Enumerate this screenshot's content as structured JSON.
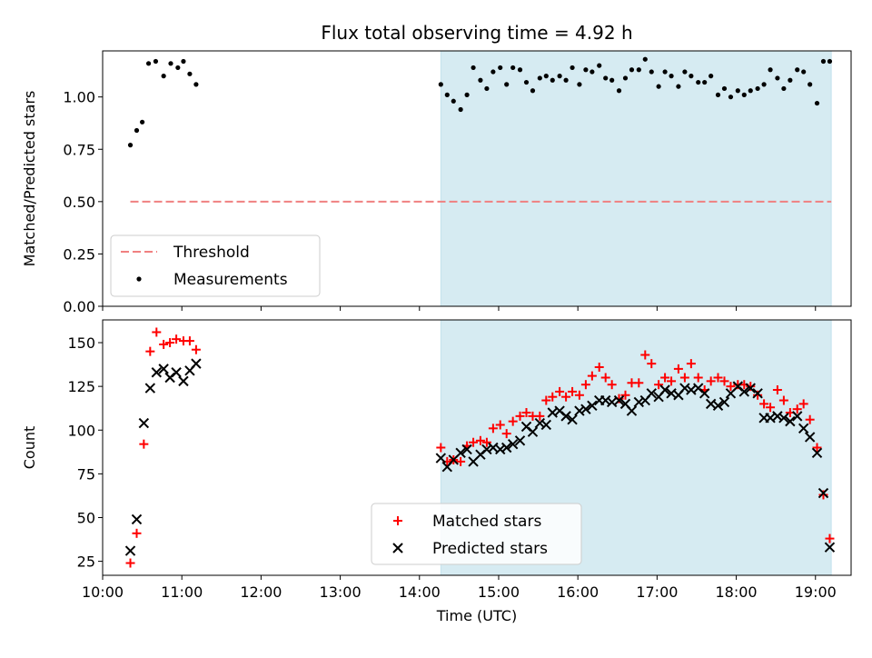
{
  "title": "Flux total observing time = 4.92 h",
  "chart_data": [
    {
      "type": "scatter",
      "ylabel": "Matched/Predicted stars",
      "xlim": [
        10.0,
        19.45
      ],
      "ylim": [
        0.0,
        1.22
      ],
      "yticks": [
        {
          "value": 0.0,
          "label": "0.00"
        },
        {
          "value": 0.25,
          "label": "0.25"
        },
        {
          "value": 0.5,
          "label": "0.50"
        },
        {
          "value": 0.75,
          "label": "0.75"
        },
        {
          "value": 1.0,
          "label": "1.00"
        }
      ],
      "shaded_span": {
        "x": [
          14.27,
          19.2
        ],
        "color": "#add8e6"
      },
      "threshold": {
        "name": "Threshold",
        "y": 0.5,
        "x": [
          10.35,
          19.2
        ],
        "color": "#f08080",
        "style": "dashed"
      },
      "legend": {
        "placement": "lower-left",
        "entries": [
          "Threshold",
          "Measurements"
        ]
      },
      "series": [
        {
          "name": "Measurements",
          "marker": "dot",
          "color": "#000000",
          "x": [
            10.35,
            10.43,
            10.5,
            10.58,
            10.67,
            10.77,
            10.86,
            10.95,
            11.02,
            11.1,
            11.18,
            14.27,
            14.35,
            14.43,
            14.52,
            14.6,
            14.68,
            14.77,
            14.85,
            14.93,
            15.02,
            15.1,
            15.18,
            15.27,
            15.35,
            15.43,
            15.52,
            15.6,
            15.68,
            15.77,
            15.85,
            15.93,
            16.02,
            16.1,
            16.18,
            16.27,
            16.35,
            16.43,
            16.52,
            16.6,
            16.68,
            16.77,
            16.85,
            16.93,
            17.02,
            17.1,
            17.18,
            17.27,
            17.35,
            17.43,
            17.52,
            17.6,
            17.68,
            17.77,
            17.85,
            17.93,
            18.02,
            18.1,
            18.18,
            18.27,
            18.35,
            18.43,
            18.52,
            18.6,
            18.68,
            18.77,
            18.85,
            18.93,
            19.02,
            19.1,
            19.18
          ],
          "y": [
            0.77,
            0.84,
            0.88,
            1.16,
            1.17,
            1.1,
            1.16,
            1.14,
            1.17,
            1.11,
            1.06,
            1.06,
            1.01,
            0.98,
            0.94,
            1.01,
            1.14,
            1.08,
            1.04,
            1.12,
            1.14,
            1.06,
            1.14,
            1.13,
            1.07,
            1.03,
            1.09,
            1.1,
            1.08,
            1.1,
            1.08,
            1.14,
            1.06,
            1.13,
            1.12,
            1.15,
            1.09,
            1.08,
            1.03,
            1.09,
            1.13,
            1.13,
            1.18,
            1.12,
            1.05,
            1.12,
            1.1,
            1.05,
            1.12,
            1.1,
            1.07,
            1.07,
            1.1,
            1.01,
            1.04,
            1.0,
            1.03,
            1.01,
            1.03,
            1.04,
            1.06,
            1.13,
            1.09,
            1.04,
            1.08,
            1.13,
            1.12,
            1.06,
            0.97,
            1.17,
            1.17
          ]
        }
      ]
    },
    {
      "type": "scatter",
      "xlabel": "Time (UTC)",
      "ylabel": "Count",
      "xlim": [
        10.0,
        19.45
      ],
      "ylim": [
        17,
        163
      ],
      "yticks": [
        {
          "value": 25,
          "label": "25"
        },
        {
          "value": 50,
          "label": "50"
        },
        {
          "value": 75,
          "label": "75"
        },
        {
          "value": 100,
          "label": "100"
        },
        {
          "value": 125,
          "label": "125"
        },
        {
          "value": 150,
          "label": "150"
        }
      ],
      "xticks": [
        {
          "value": 10,
          "label": "10:00"
        },
        {
          "value": 11,
          "label": "11:00"
        },
        {
          "value": 12,
          "label": "12:00"
        },
        {
          "value": 13,
          "label": "13:00"
        },
        {
          "value": 14,
          "label": "14:00"
        },
        {
          "value": 15,
          "label": "15:00"
        },
        {
          "value": 16,
          "label": "16:00"
        },
        {
          "value": 17,
          "label": "17:00"
        },
        {
          "value": 18,
          "label": "18:00"
        },
        {
          "value": 19,
          "label": "19:00"
        }
      ],
      "shaded_span": {
        "x": [
          14.27,
          19.2
        ],
        "color": "#add8e6"
      },
      "legend": {
        "placement": "lower-center",
        "entries": [
          "Matched stars",
          "Predicted stars"
        ]
      },
      "series": [
        {
          "name": "Matched stars",
          "marker": "plus",
          "color": "#ff0000",
          "x": [
            10.35,
            10.43,
            10.52,
            10.6,
            10.68,
            10.77,
            10.85,
            10.93,
            11.02,
            11.1,
            11.18,
            14.27,
            14.35,
            14.43,
            14.52,
            14.6,
            14.68,
            14.77,
            14.85,
            14.93,
            15.02,
            15.1,
            15.18,
            15.27,
            15.35,
            15.43,
            15.52,
            15.6,
            15.68,
            15.77,
            15.85,
            15.93,
            16.02,
            16.1,
            16.18,
            16.27,
            16.35,
            16.43,
            16.52,
            16.6,
            16.68,
            16.77,
            16.85,
            16.93,
            17.02,
            17.1,
            17.18,
            17.27,
            17.35,
            17.43,
            17.52,
            17.6,
            17.68,
            17.77,
            17.85,
            17.93,
            18.02,
            18.1,
            18.18,
            18.27,
            18.35,
            18.43,
            18.52,
            18.6,
            18.68,
            18.77,
            18.85,
            18.93,
            19.02,
            19.1,
            19.18
          ],
          "y": [
            24,
            41,
            92,
            145,
            156,
            149,
            150,
            152,
            151,
            151,
            146,
            90,
            82,
            83,
            82,
            91,
            93,
            94,
            93,
            101,
            103,
            98,
            105,
            108,
            110,
            108,
            108,
            117,
            119,
            122,
            119,
            122,
            120,
            126,
            131,
            136,
            130,
            126,
            118,
            120,
            127,
            127,
            143,
            138,
            126,
            130,
            128,
            135,
            130,
            138,
            130,
            123,
            128,
            130,
            128,
            125,
            126,
            126,
            125,
            120,
            115,
            113,
            123,
            117,
            110,
            112,
            115,
            106,
            90,
            63,
            38
          ]
        },
        {
          "name": "Predicted stars",
          "marker": "x",
          "color": "#000000",
          "x": [
            10.35,
            10.43,
            10.52,
            10.6,
            10.68,
            10.77,
            10.85,
            10.93,
            11.02,
            11.1,
            11.18,
            14.27,
            14.35,
            14.43,
            14.52,
            14.6,
            14.68,
            14.77,
            14.85,
            14.93,
            15.02,
            15.1,
            15.18,
            15.27,
            15.35,
            15.43,
            15.52,
            15.6,
            15.68,
            15.77,
            15.85,
            15.93,
            16.02,
            16.1,
            16.18,
            16.27,
            16.35,
            16.43,
            16.52,
            16.6,
            16.68,
            16.77,
            16.85,
            16.93,
            17.02,
            17.1,
            17.18,
            17.27,
            17.35,
            17.43,
            17.52,
            17.6,
            17.68,
            17.77,
            17.85,
            17.93,
            18.02,
            18.1,
            18.18,
            18.27,
            18.35,
            18.43,
            18.52,
            18.6,
            18.68,
            18.77,
            18.85,
            18.93,
            19.02,
            19.1,
            19.18
          ],
          "y": [
            31,
            49,
            104,
            124,
            133,
            135,
            130,
            133,
            128,
            134,
            138,
            84,
            79,
            83,
            87,
            89,
            82,
            86,
            89,
            90,
            89,
            90,
            92,
            94,
            102,
            99,
            104,
            103,
            110,
            111,
            108,
            106,
            111,
            112,
            114,
            117,
            117,
            116,
            117,
            115,
            111,
            116,
            117,
            121,
            119,
            123,
            121,
            120,
            124,
            123,
            124,
            121,
            115,
            114,
            116,
            121,
            125,
            122,
            124,
            121,
            107,
            107,
            108,
            107,
            105,
            108,
            101,
            96,
            87,
            64,
            33
          ]
        }
      ]
    }
  ]
}
